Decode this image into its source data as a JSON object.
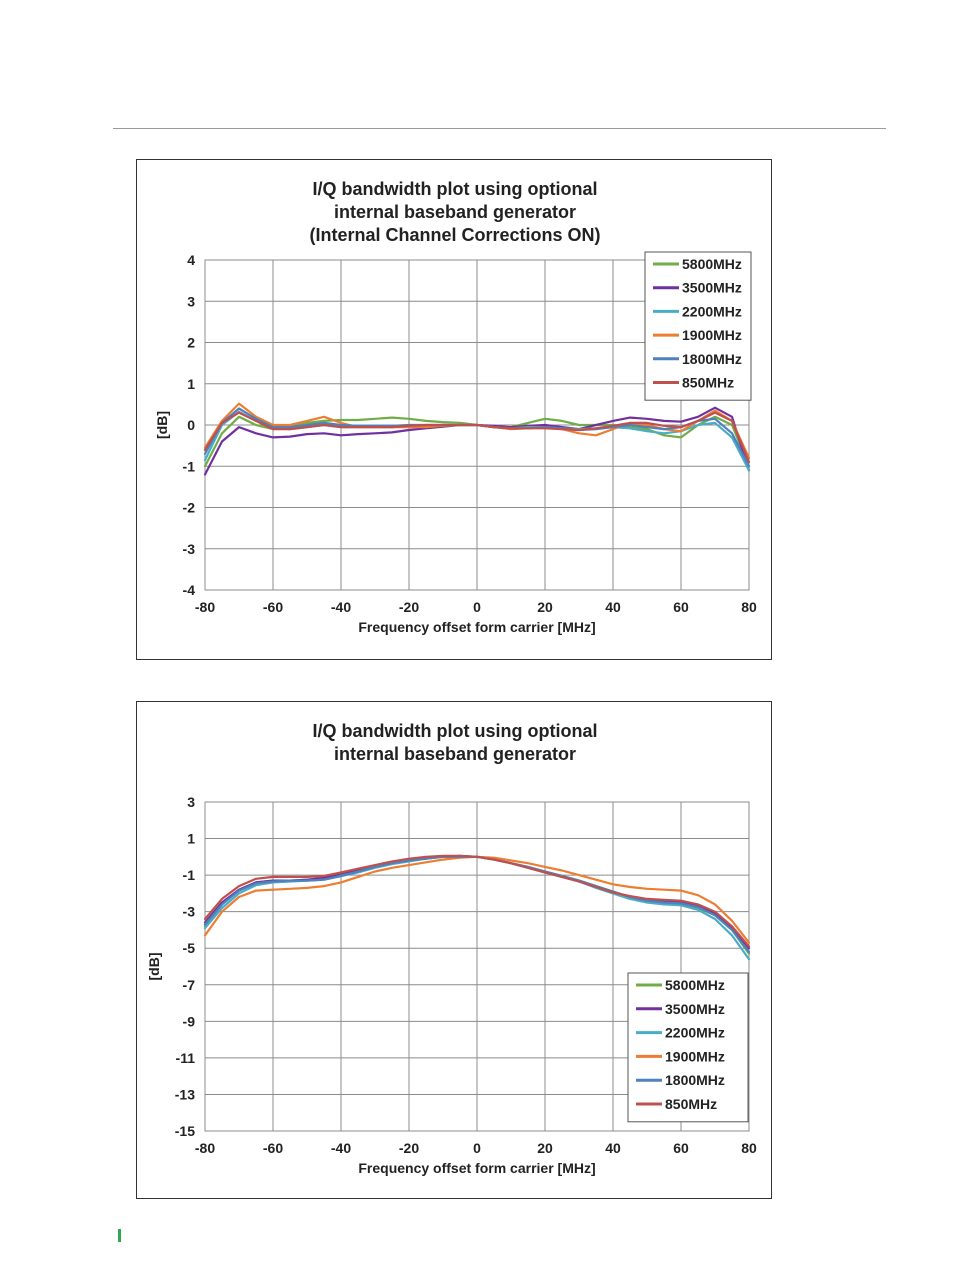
{
  "page": {
    "accent_color": "#2fa84f"
  },
  "chart_data": [
    {
      "type": "line",
      "title_lines": [
        "I/Q bandwidth plot using optional",
        "internal baseband generator",
        "(Internal Channel Corrections ON)"
      ],
      "xlabel": "Frequency offset form carrier [MHz]",
      "ylabel": "[dB]",
      "xlim": [
        -80,
        80
      ],
      "ylim": [
        -4,
        4
      ],
      "xticks": [
        -80,
        -60,
        -40,
        -20,
        0,
        20,
        40,
        60,
        80
      ],
      "yticks": [
        -4,
        -3,
        -2,
        -1,
        0,
        1,
        2,
        3,
        4
      ],
      "grid": true,
      "legend_position": "top-right",
      "x": [
        -80,
        -75,
        -70,
        -65,
        -60,
        -55,
        -50,
        -45,
        -40,
        -35,
        -30,
        -25,
        -20,
        -15,
        -10,
        -5,
        0,
        5,
        10,
        15,
        20,
        25,
        30,
        35,
        40,
        45,
        50,
        55,
        60,
        65,
        70,
        75,
        80
      ],
      "series": [
        {
          "name": "5800MHz",
          "color": "#70ad47",
          "values": [
            -1.0,
            -0.2,
            0.2,
            0.0,
            -0.1,
            -0.05,
            0.05,
            0.1,
            0.12,
            0.12,
            0.15,
            0.18,
            0.15,
            0.1,
            0.07,
            0.05,
            0.0,
            -0.05,
            -0.05,
            0.05,
            0.15,
            0.1,
            0.0,
            0.0,
            0.0,
            -0.05,
            -0.1,
            -0.25,
            -0.3,
            0.0,
            0.2,
            0.0,
            -1.0
          ]
        },
        {
          "name": "3500MHz",
          "color": "#7030a0",
          "values": [
            -1.2,
            -0.4,
            -0.05,
            -0.2,
            -0.3,
            -0.28,
            -0.22,
            -0.2,
            -0.25,
            -0.22,
            -0.2,
            -0.18,
            -0.12,
            -0.08,
            -0.04,
            0.0,
            0.0,
            -0.02,
            -0.05,
            -0.02,
            0.0,
            -0.05,
            -0.1,
            0.0,
            0.1,
            0.18,
            0.15,
            0.1,
            0.08,
            0.2,
            0.42,
            0.2,
            -1.1
          ]
        },
        {
          "name": "2200MHz",
          "color": "#4bacc6",
          "values": [
            -0.85,
            0.0,
            0.32,
            0.1,
            -0.08,
            -0.1,
            -0.05,
            0.0,
            -0.05,
            -0.05,
            -0.05,
            -0.05,
            -0.03,
            -0.02,
            0.0,
            0.0,
            0.0,
            -0.05,
            -0.08,
            -0.05,
            -0.05,
            -0.08,
            -0.1,
            -0.08,
            -0.05,
            -0.08,
            -0.15,
            -0.2,
            -0.15,
            0.0,
            0.05,
            -0.3,
            -1.1
          ]
        },
        {
          "name": "1900MHz",
          "color": "#ed7d31",
          "values": [
            -0.55,
            0.1,
            0.52,
            0.2,
            0.0,
            0.0,
            0.1,
            0.2,
            0.05,
            -0.05,
            -0.05,
            -0.05,
            -0.05,
            -0.05,
            -0.02,
            0.0,
            0.0,
            -0.05,
            -0.1,
            -0.08,
            -0.05,
            -0.1,
            -0.2,
            -0.25,
            -0.1,
            0.05,
            0.0,
            -0.1,
            -0.15,
            0.1,
            0.35,
            0.1,
            -0.8
          ]
        },
        {
          "name": "1800MHz",
          "color": "#4f81bd",
          "values": [
            -0.7,
            0.05,
            0.4,
            0.15,
            -0.05,
            -0.05,
            0.0,
            0.05,
            0.0,
            -0.02,
            -0.02,
            -0.02,
            0.0,
            0.0,
            0.0,
            0.0,
            0.0,
            -0.05,
            -0.08,
            -0.08,
            -0.05,
            -0.08,
            -0.12,
            -0.1,
            -0.05,
            0.0,
            -0.05,
            -0.1,
            -0.05,
            0.1,
            0.15,
            -0.2,
            -1.0
          ]
        },
        {
          "name": "850MHz",
          "color": "#c0504d",
          "values": [
            -0.6,
            0.05,
            0.3,
            0.1,
            -0.1,
            -0.1,
            -0.05,
            0.0,
            -0.05,
            -0.05,
            -0.05,
            -0.05,
            -0.02,
            0.0,
            0.0,
            0.0,
            0.0,
            -0.05,
            -0.08,
            -0.08,
            -0.08,
            -0.1,
            -0.12,
            -0.08,
            -0.02,
            0.05,
            0.05,
            -0.02,
            -0.05,
            0.1,
            0.3,
            0.1,
            -0.9
          ]
        }
      ]
    },
    {
      "type": "line",
      "title_lines": [
        "I/Q bandwidth plot using optional",
        "internal baseband generator"
      ],
      "xlabel": "Frequency offset form carrier [MHz]",
      "ylabel": "[dB]",
      "xlim": [
        -80,
        80
      ],
      "ylim": [
        -15,
        3
      ],
      "xticks": [
        -80,
        -60,
        -40,
        -20,
        0,
        20,
        40,
        60,
        80
      ],
      "yticks": [
        -15,
        -13,
        -11,
        -9,
        -7,
        -5,
        -3,
        -1,
        1,
        3
      ],
      "grid": true,
      "legend_position": "bottom-right",
      "x": [
        -80,
        -75,
        -70,
        -65,
        -60,
        -55,
        -50,
        -45,
        -40,
        -35,
        -30,
        -25,
        -20,
        -15,
        -10,
        -5,
        0,
        5,
        10,
        15,
        20,
        25,
        30,
        35,
        40,
        45,
        50,
        55,
        60,
        65,
        70,
        75,
        80
      ],
      "series": [
        {
          "name": "5800MHz",
          "color": "#70ad47",
          "values": [
            -3.8,
            -2.6,
            -1.8,
            -1.4,
            -1.3,
            -1.3,
            -1.25,
            -1.2,
            -1.0,
            -0.8,
            -0.55,
            -0.35,
            -0.2,
            -0.1,
            0.0,
            0.0,
            0.0,
            -0.15,
            -0.35,
            -0.55,
            -0.8,
            -1.05,
            -1.3,
            -1.6,
            -1.9,
            -2.2,
            -2.4,
            -2.5,
            -2.6,
            -2.8,
            -3.2,
            -4.0,
            -5.3
          ]
        },
        {
          "name": "3500MHz",
          "color": "#7030a0",
          "values": [
            -3.6,
            -2.5,
            -1.8,
            -1.4,
            -1.3,
            -1.3,
            -1.25,
            -1.15,
            -0.9,
            -0.7,
            -0.5,
            -0.3,
            -0.15,
            -0.05,
            0.0,
            0.05,
            0.0,
            -0.15,
            -0.35,
            -0.6,
            -0.85,
            -1.1,
            -1.35,
            -1.65,
            -1.95,
            -2.2,
            -2.35,
            -2.45,
            -2.5,
            -2.7,
            -3.1,
            -3.9,
            -5.0
          ]
        },
        {
          "name": "2200MHz",
          "color": "#4bacc6",
          "values": [
            -3.9,
            -2.8,
            -2.0,
            -1.55,
            -1.4,
            -1.35,
            -1.3,
            -1.25,
            -1.05,
            -0.85,
            -0.6,
            -0.4,
            -0.25,
            -0.1,
            0.0,
            0.0,
            0.0,
            -0.15,
            -0.35,
            -0.55,
            -0.8,
            -1.05,
            -1.35,
            -1.7,
            -2.0,
            -2.3,
            -2.5,
            -2.6,
            -2.65,
            -2.9,
            -3.4,
            -4.3,
            -5.6
          ]
        },
        {
          "name": "1900MHz",
          "color": "#ed7d31",
          "values": [
            -4.3,
            -3.0,
            -2.2,
            -1.85,
            -1.8,
            -1.75,
            -1.7,
            -1.6,
            -1.4,
            -1.1,
            -0.8,
            -0.6,
            -0.45,
            -0.3,
            -0.15,
            -0.05,
            0.0,
            -0.05,
            -0.2,
            -0.35,
            -0.55,
            -0.75,
            -1.0,
            -1.25,
            -1.5,
            -1.65,
            -1.75,
            -1.8,
            -1.85,
            -2.1,
            -2.6,
            -3.5,
            -4.7
          ]
        },
        {
          "name": "1800MHz",
          "color": "#4f81bd",
          "values": [
            -3.7,
            -2.6,
            -1.85,
            -1.45,
            -1.35,
            -1.3,
            -1.3,
            -1.25,
            -1.05,
            -0.8,
            -0.55,
            -0.35,
            -0.2,
            -0.1,
            0.0,
            0.0,
            0.0,
            -0.15,
            -0.35,
            -0.55,
            -0.8,
            -1.05,
            -1.3,
            -1.6,
            -1.9,
            -2.2,
            -2.4,
            -2.5,
            -2.55,
            -2.75,
            -3.2,
            -4.0,
            -5.2
          ]
        },
        {
          "name": "850MHz",
          "color": "#c0504d",
          "values": [
            -3.4,
            -2.3,
            -1.6,
            -1.2,
            -1.1,
            -1.1,
            -1.1,
            -1.05,
            -0.85,
            -0.65,
            -0.45,
            -0.25,
            -0.1,
            0.0,
            0.05,
            0.05,
            0.0,
            -0.15,
            -0.35,
            -0.6,
            -0.85,
            -1.1,
            -1.35,
            -1.65,
            -1.95,
            -2.15,
            -2.3,
            -2.35,
            -2.4,
            -2.6,
            -3.0,
            -3.8,
            -4.9
          ]
        }
      ]
    }
  ]
}
